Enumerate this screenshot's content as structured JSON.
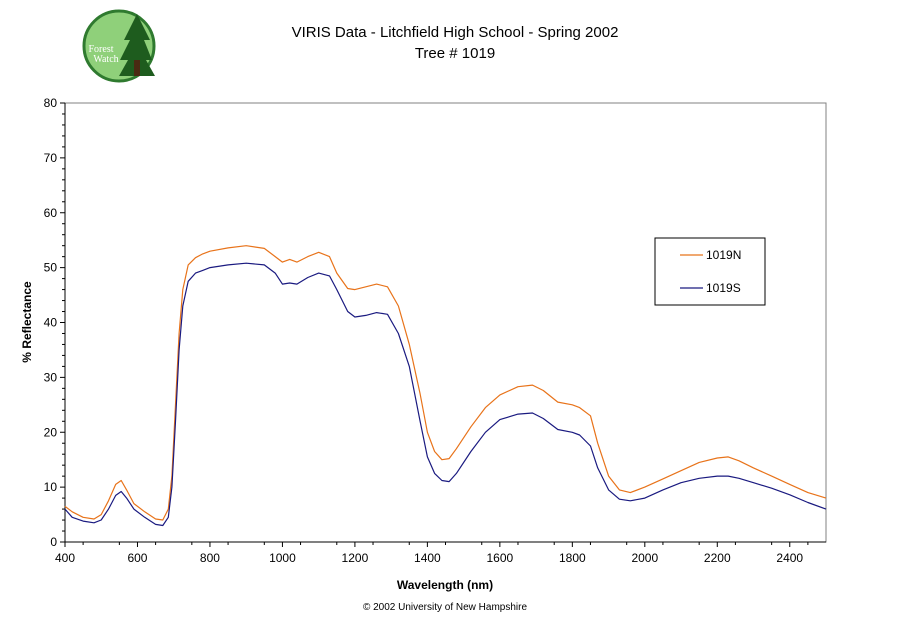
{
  "logo": {
    "line1": "Forest",
    "line2": "Watch",
    "colors": {
      "disc": "#8fd07a",
      "ring": "#2f7a2f",
      "tree": "#1e5c1e",
      "trunk": "#4a2a12"
    }
  },
  "footer": "© 2002 University of New Hampshire",
  "chart_data": {
    "type": "line",
    "title": "VIRIS Data - Litchfield High School - Spring 2002",
    "subtitle": "Tree # 1019",
    "xlabel": "Wavelength (nm)",
    "ylabel": "% Reflectance",
    "xlim": [
      400,
      2500
    ],
    "ylim": [
      0,
      80
    ],
    "xticks": [
      400,
      600,
      800,
      1000,
      1200,
      1400,
      1600,
      1800,
      2000,
      2200,
      2400
    ],
    "yticks": [
      0,
      10,
      20,
      30,
      40,
      50,
      60,
      70,
      80
    ],
    "grid": false,
    "legend_position": "right",
    "series": [
      {
        "name": "1019N",
        "color": "#e8731a",
        "x": [
          400,
          420,
          450,
          480,
          500,
          520,
          540,
          555,
          570,
          590,
          620,
          650,
          670,
          685,
          695,
          705,
          715,
          725,
          740,
          760,
          780,
          800,
          850,
          900,
          950,
          980,
          1000,
          1020,
          1040,
          1070,
          1100,
          1130,
          1150,
          1180,
          1200,
          1230,
          1260,
          1290,
          1320,
          1350,
          1380,
          1400,
          1420,
          1440,
          1460,
          1480,
          1520,
          1560,
          1600,
          1650,
          1690,
          1720,
          1760,
          1800,
          1820,
          1850,
          1870,
          1900,
          1930,
          1960,
          2000,
          2050,
          2100,
          2150,
          2200,
          2230,
          2260,
          2300,
          2350,
          2400,
          2450,
          2500
        ],
        "values": [
          6.5,
          5.5,
          4.5,
          4.2,
          5.0,
          7.5,
          10.5,
          11.2,
          9.5,
          7.0,
          5.5,
          4.2,
          4.0,
          6.0,
          12.0,
          25.0,
          38.0,
          46.0,
          50.5,
          51.8,
          52.5,
          53.0,
          53.6,
          54.0,
          53.5,
          52.0,
          51.0,
          51.5,
          51.0,
          52.0,
          52.8,
          52.0,
          49.0,
          46.2,
          46.0,
          46.5,
          47.0,
          46.5,
          43.0,
          36.0,
          27.0,
          20.0,
          16.5,
          15.0,
          15.2,
          17.0,
          21.0,
          24.5,
          26.8,
          28.3,
          28.6,
          27.6,
          25.5,
          25.0,
          24.5,
          23.0,
          18.0,
          12.0,
          9.5,
          9.0,
          10.0,
          11.5,
          13.0,
          14.5,
          15.3,
          15.5,
          14.8,
          13.5,
          12.0,
          10.5,
          9.0,
          8.0
        ]
      },
      {
        "name": "1019S",
        "color": "#1a1a80",
        "x": [
          400,
          420,
          450,
          480,
          500,
          520,
          540,
          555,
          570,
          590,
          620,
          650,
          670,
          685,
          695,
          705,
          715,
          725,
          740,
          760,
          780,
          800,
          850,
          900,
          950,
          980,
          1000,
          1020,
          1040,
          1070,
          1100,
          1130,
          1150,
          1180,
          1200,
          1230,
          1260,
          1290,
          1320,
          1350,
          1380,
          1400,
          1420,
          1440,
          1460,
          1480,
          1520,
          1560,
          1600,
          1650,
          1690,
          1720,
          1760,
          1800,
          1820,
          1850,
          1870,
          1900,
          1930,
          1960,
          2000,
          2050,
          2100,
          2150,
          2200,
          2230,
          2260,
          2300,
          2350,
          2400,
          2450,
          2500
        ],
        "values": [
          6.0,
          4.5,
          3.8,
          3.5,
          4.0,
          6.0,
          8.5,
          9.2,
          8.0,
          6.0,
          4.5,
          3.2,
          3.0,
          4.5,
          10.0,
          22.0,
          35.0,
          43.0,
          47.5,
          49.0,
          49.5,
          50.0,
          50.5,
          50.8,
          50.5,
          49.0,
          47.0,
          47.2,
          47.0,
          48.2,
          49.0,
          48.5,
          46.0,
          42.0,
          41.0,
          41.3,
          41.8,
          41.5,
          38.0,
          32.0,
          22.0,
          15.5,
          12.5,
          11.2,
          11.0,
          12.5,
          16.5,
          20.0,
          22.3,
          23.3,
          23.5,
          22.5,
          20.5,
          20.0,
          19.5,
          17.5,
          13.5,
          9.5,
          7.8,
          7.5,
          8.0,
          9.5,
          10.8,
          11.6,
          12.0,
          12.0,
          11.6,
          10.8,
          9.8,
          8.6,
          7.2,
          6.0
        ]
      }
    ]
  }
}
